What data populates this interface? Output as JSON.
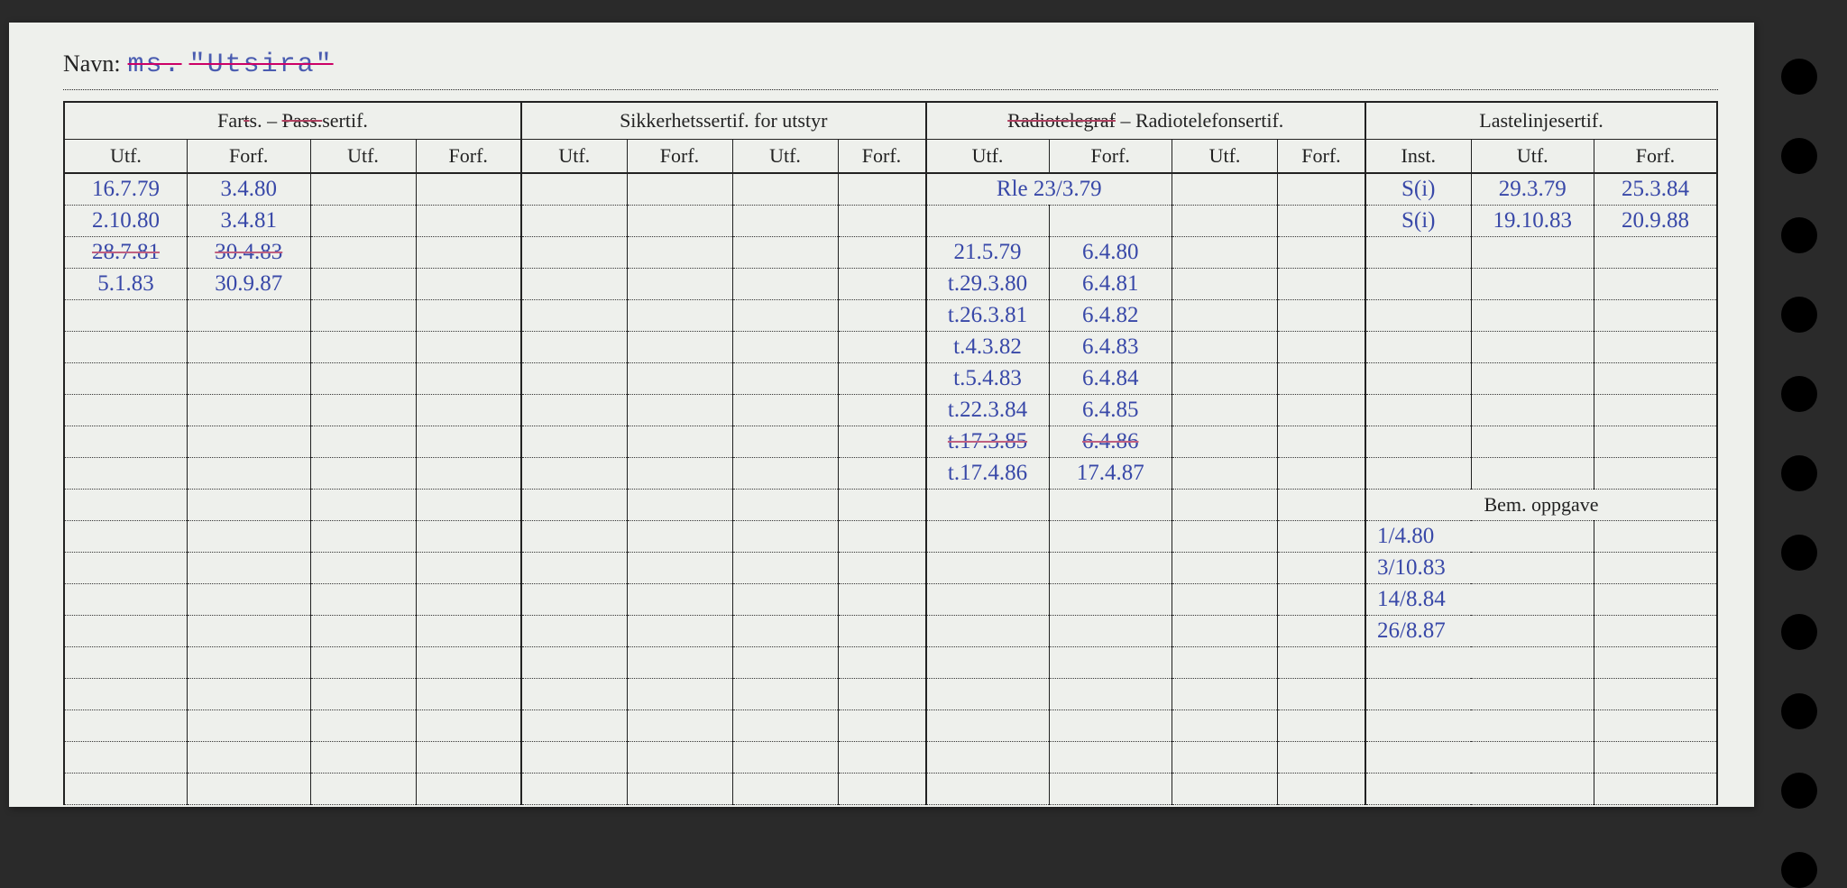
{
  "navn": {
    "label": "Navn:",
    "ms": "ms.",
    "value": "\"Utsira\""
  },
  "headers": {
    "section1": "Farts. – Pass.sertif.",
    "section2": "Sikkerhetssertif. for utstyr",
    "section3a": "Radiotelegraf",
    "section3b": " – Radiotelefonsertif.",
    "section4": "Lastelinjesertif.",
    "utf": "Utf.",
    "forf": "Forf.",
    "inst": "Inst.",
    "bem": "Bem. oppgave"
  },
  "farts": [
    {
      "utf": "16.7.79",
      "forf": "3.4.80"
    },
    {
      "utf": "2.10.80",
      "forf": "3.4.81"
    },
    {
      "utf": "28.7.81",
      "forf": "30.4.83",
      "strike": true
    },
    {
      "utf": "5.1.83",
      "forf": "30.9.87"
    }
  ],
  "radio_header": "Rle 23/3.79",
  "radio": [
    {
      "utf": "21.5.79",
      "forf": "6.4.80"
    },
    {
      "utf": "t.29.3.80",
      "forf": "6.4.81"
    },
    {
      "utf": "t.26.3.81",
      "forf": "6.4.82"
    },
    {
      "utf": "t.4.3.82",
      "forf": "6.4.83"
    },
    {
      "utf": "t.5.4.83",
      "forf": "6.4.84"
    },
    {
      "utf": "t.22.3.84",
      "forf": "6.4.85"
    },
    {
      "utf": "t.17.3.85",
      "forf": "6.4.86",
      "strike": true
    },
    {
      "utf": "t.17.4.86",
      "forf": "17.4.87"
    }
  ],
  "laste": [
    {
      "inst": "S(i)",
      "utf": "29.3.79",
      "forf": "25.3.84"
    },
    {
      "inst": "S(i)",
      "utf": "19.10.83",
      "forf": "20.9.88"
    }
  ],
  "bem": [
    "1/4.80",
    "3/10.83",
    "14/8.84",
    "26/8.87"
  ],
  "colors": {
    "ink": "#3848a8",
    "print": "#222",
    "paper": "#eef0ec"
  }
}
